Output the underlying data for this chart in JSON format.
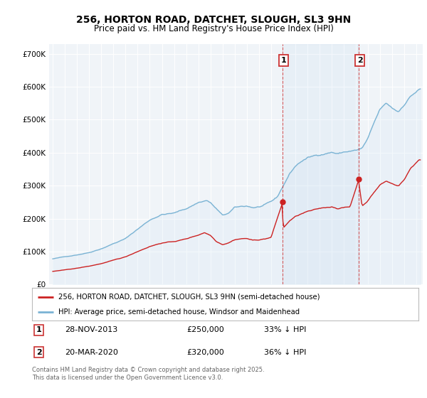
{
  "title": "256, HORTON ROAD, DATCHET, SLOUGH, SL3 9HN",
  "subtitle": "Price paid vs. HM Land Registry's House Price Index (HPI)",
  "yticks": [
    0,
    100000,
    200000,
    300000,
    400000,
    500000,
    600000,
    700000
  ],
  "ytick_labels": [
    "£0",
    "£100K",
    "£200K",
    "£300K",
    "£400K",
    "£500K",
    "£600K",
    "£700K"
  ],
  "hpi_color": "#7ab3d4",
  "hpi_fill_color": "#d6e8f5",
  "price_color": "#cc2222",
  "marker1_x": 2013.92,
  "marker2_x": 2020.21,
  "marker1_price": 250000,
  "marker2_price": 320000,
  "legend1": "256, HORTON ROAD, DATCHET, SLOUGH, SL3 9HN (semi-detached house)",
  "legend2": "HPI: Average price, semi-detached house, Windsor and Maidenhead",
  "footer": "Contains HM Land Registry data © Crown copyright and database right 2025.\nThis data is licensed under the Open Government Licence v3.0.",
  "background_color": "#ffffff",
  "plot_bg_color": "#f0f4f8",
  "xlim_start": 1994.7,
  "xlim_end": 2025.5,
  "ylim_max": 730000
}
